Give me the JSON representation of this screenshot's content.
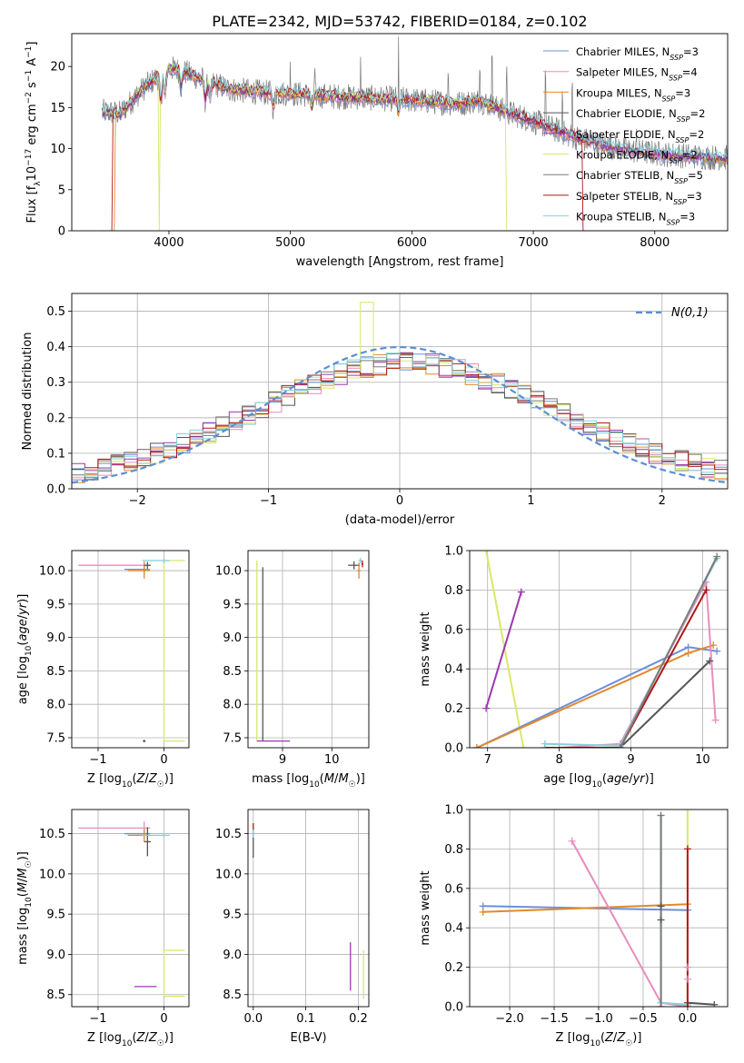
{
  "figure_title": "PLATE=2342, MJD=53742, FIBERID=0184, z=0.102",
  "colors": {
    "chabrier_miles": "#6c8fd9",
    "salpeter_miles": "#e88cbc",
    "kroupa_miles": "#e08a2a",
    "chabrier_elodie": "#555555",
    "salpeter_elodie": "#9b38b0",
    "kroupa_elodie": "#d8e86a",
    "chabrier_stelib": "#7a7a7a",
    "salpeter_stelib": "#b01818",
    "kroupa_stelib": "#84d0d8",
    "normal_curve": "#5b8fd6",
    "grid": "#b0b0b0"
  },
  "chart_data": [
    {
      "id": "spectrum",
      "type": "line",
      "title": "",
      "xlabel": "wavelength [Angstrom, rest frame]",
      "ylabel": "Flux [f_λ 10^-17 erg cm^-2 s^-1 A^-1]",
      "xlim": [
        3200,
        8600
      ],
      "ylim": [
        0,
        24
      ],
      "xticks": [
        4000,
        5000,
        6000,
        7000,
        8000
      ],
      "yticks": [
        0,
        5,
        10,
        15,
        20
      ],
      "grid": false,
      "legend_position": "top-right",
      "legend": [
        {
          "name": "Chabrier MILES, N_SSP=3",
          "color_key": "chabrier_miles"
        },
        {
          "name": "Salpeter MILES, N_SSP=4",
          "color_key": "salpeter_miles"
        },
        {
          "name": "Kroupa MILES, N_SSP=3",
          "color_key": "kroupa_miles"
        },
        {
          "name": "Chabrier ELODIE, N_SSP=2",
          "color_key": "chabrier_elodie"
        },
        {
          "name": "Salpeter ELODIE, N_SSP=2",
          "color_key": "salpeter_elodie"
        },
        {
          "name": "Kroupa ELODIE, N_SSP=2",
          "color_key": "kroupa_elodie"
        },
        {
          "name": "Chabrier STELIB, N_SSP=5",
          "color_key": "chabrier_stelib"
        },
        {
          "name": "Salpeter STELIB, N_SSP=3",
          "color_key": "salpeter_stelib"
        },
        {
          "name": "Kroupa STELIB, N_SSP=3",
          "color_key": "kroupa_stelib"
        }
      ],
      "continuum": {
        "x": [
          3450,
          3600,
          3800,
          3950,
          4000,
          4100,
          4300,
          4500,
          4800,
          5000,
          5300,
          5600,
          5900,
          6200,
          6400,
          6600,
          6750,
          6900,
          7100,
          7300,
          7500,
          7700,
          7900,
          8100,
          8300,
          8500
        ],
        "y": [
          14.5,
          14.3,
          17.5,
          19.2,
          19.8,
          19.5,
          18.3,
          17.2,
          16.8,
          16.7,
          16.4,
          16.2,
          16.0,
          15.7,
          15.4,
          14.9,
          14.6,
          13.9,
          12.8,
          11.6,
          10.7,
          10.0,
          9.6,
          9.3,
          9.1,
          8.9
        ]
      },
      "absorption_dips": [
        {
          "x": 3933,
          "depth": 3.5
        },
        {
          "x": 3968,
          "depth": 3.0
        },
        {
          "x": 4101,
          "depth": 2.0
        },
        {
          "x": 4300,
          "depth": 2.5
        },
        {
          "x": 4340,
          "depth": 2.0
        },
        {
          "x": 4861,
          "depth": 1.8
        },
        {
          "x": 5175,
          "depth": 1.5
        },
        {
          "x": 5890,
          "depth": 1.5
        }
      ],
      "emission_spikes": [
        {
          "x": 5000,
          "height": 3.0
        },
        {
          "x": 5200,
          "height": 2.0
        },
        {
          "x": 5577,
          "height": 4.0
        },
        {
          "x": 5890,
          "height": 8.5
        },
        {
          "x": 6300,
          "height": 4.0
        },
        {
          "x": 6560,
          "height": 5.0
        },
        {
          "x": 6660,
          "height": 7.5
        },
        {
          "x": 6780,
          "height": 5.0
        },
        {
          "x": 7100,
          "height": 6.5
        },
        {
          "x": 7240,
          "height": 5.0
        },
        {
          "x": 7320,
          "height": 6.0
        },
        {
          "x": 7850,
          "height": 2.5
        }
      ],
      "bad_pixel_drops": [
        {
          "x": 3530,
          "color_key": "salpeter_stelib"
        },
        {
          "x": 3550,
          "color_key": "kroupa_miles"
        },
        {
          "x": 3920,
          "color_key": "kroupa_elodie"
        },
        {
          "x": 6780,
          "color_key": "kroupa_elodie"
        },
        {
          "x": 7410,
          "color_key": "salpeter_stelib"
        }
      ]
    },
    {
      "id": "residuals",
      "type": "step",
      "title": "",
      "xlabel": "(data-model)/error",
      "ylabel": "Normed distribution",
      "xlim": [
        -2.5,
        2.5
      ],
      "ylim": [
        0,
        0.55
      ],
      "xticks": [
        -2,
        -1,
        0,
        1,
        2
      ],
      "yticks": [
        0.0,
        0.1,
        0.2,
        0.3,
        0.4,
        0.5
      ],
      "grid": true,
      "legend_position": "top-right",
      "legend": [
        {
          "name": "N(0,1)",
          "color_key": "normal_curve",
          "style": "dashed"
        }
      ],
      "bins": {
        "start": -2.5,
        "width": 0.1,
        "count": 50
      },
      "base": [
        0.045,
        0.052,
        0.06,
        0.069,
        0.078,
        0.089,
        0.101,
        0.114,
        0.128,
        0.143,
        0.159,
        0.175,
        0.192,
        0.21,
        0.228,
        0.245,
        0.262,
        0.279,
        0.295,
        0.31,
        0.323,
        0.334,
        0.343,
        0.35,
        0.354,
        0.356,
        0.354,
        0.35,
        0.343,
        0.334,
        0.323,
        0.31,
        0.295,
        0.279,
        0.262,
        0.245,
        0.228,
        0.21,
        0.192,
        0.175,
        0.159,
        0.143,
        0.128,
        0.114,
        0.101,
        0.089,
        0.078,
        0.069,
        0.06,
        0.052
      ],
      "peak_note": {
        "x": -0.25,
        "y": 0.525,
        "color_key": "kroupa_elodie"
      }
    },
    {
      "id": "age-vs-Z",
      "type": "scatter",
      "title": "",
      "xlabel": "Z [log10(Z/Z_sun)]",
      "ylabel": "age [log10(age/yr)]",
      "xlim": [
        -1.4,
        0.38
      ],
      "ylim": [
        7.35,
        10.3
      ],
      "xticks": [
        -1,
        0
      ],
      "yticks": [
        7.5,
        8.0,
        8.5,
        9.0,
        9.5,
        10.0
      ],
      "grid": true,
      "points": [
        {
          "x": -0.3,
          "y": 10.08,
          "xerr": 1.0,
          "yerr": 0.06,
          "color_key": "salpeter_miles"
        },
        {
          "x": -0.3,
          "y": 10.02,
          "xerr": 0.3,
          "yerr": 0.08,
          "color_key": "chabrier_miles"
        },
        {
          "x": -0.3,
          "y": 10.0,
          "xerr": 0.25,
          "yerr": 0.12,
          "color_key": "kroupa_miles"
        },
        {
          "x": -0.25,
          "y": 10.08,
          "xerr": 0.05,
          "yerr": 0.05,
          "color_key": "chabrier_elodie"
        },
        {
          "x": 0.0,
          "y": 10.15,
          "xerr": 0.33,
          "yerr": 0.04,
          "color_key": "kroupa_stelib"
        },
        {
          "x": -0.3,
          "y": 7.45,
          "xerr": 0.02,
          "yerr": 0.02,
          "color_key": "chabrier_elodie"
        }
      ],
      "bars": [
        {
          "x": 0.0,
          "y0": 7.45,
          "y1": 10.15,
          "color_key": "kroupa_elodie",
          "horizontal_to": 0.32
        }
      ]
    },
    {
      "id": "age-vs-mass",
      "type": "scatter",
      "title": "",
      "xlabel": "mass [log10(M/M_sun)]",
      "ylabel": "",
      "xlim": [
        8.3,
        10.75
      ],
      "ylim": [
        7.35,
        10.3
      ],
      "xticks": [
        9,
        10
      ],
      "yticks": [
        7.5,
        8.0,
        8.5,
        9.0,
        9.5,
        10.0
      ],
      "grid": true,
      "points": [
        {
          "x": 10.45,
          "y": 10.08,
          "xerr": 0.12,
          "yerr": 0.06,
          "color_key": "chabrier_elodie"
        },
        {
          "x": 10.55,
          "y": 10.0,
          "xerr": 0.04,
          "yerr": 0.12,
          "color_key": "kroupa_miles"
        },
        {
          "x": 10.58,
          "y": 10.15,
          "xerr": 0.04,
          "yerr": 0.04,
          "color_key": "kroupa_stelib"
        },
        {
          "x": 10.62,
          "y": 10.1,
          "xerr": 0.02,
          "yerr": 0.05,
          "color_key": "salpeter_stelib"
        }
      ],
      "bars": [
        {
          "x": 8.48,
          "y0": 7.45,
          "y1": 10.15,
          "color_key": "kroupa_elodie"
        },
        {
          "x": 8.6,
          "y0": 7.45,
          "y1": 10.05,
          "color_key": "chabrier_elodie"
        }
      ],
      "hlines": [
        {
          "y": 7.45,
          "x0": 8.48,
          "x1": 9.15,
          "color_key": "salpeter_elodie"
        }
      ]
    },
    {
      "id": "massweight-vs-age",
      "type": "line",
      "title": "",
      "xlabel": "age [log10(age/yr)]",
      "ylabel": "mass weight",
      "xlim": [
        6.75,
        10.35
      ],
      "ylim": [
        0,
        1.0
      ],
      "xticks": [
        7,
        8,
        9,
        10
      ],
      "yticks": [
        0.0,
        0.2,
        0.4,
        0.6,
        0.8,
        1.0
      ],
      "grid": true,
      "series": [
        {
          "color_key": "kroupa_elodie",
          "x": [
            6.98,
            7.5
          ],
          "y": [
            1.0,
            0.0
          ]
        },
        {
          "color_key": "salpeter_elodie",
          "x": [
            6.98,
            7.47
          ],
          "y": [
            0.2,
            0.79
          ]
        },
        {
          "color_key": "chabrier_miles",
          "x": [
            6.85,
            9.8,
            10.2
          ],
          "y": [
            0.0,
            0.51,
            0.49
          ]
        },
        {
          "color_key": "kroupa_miles",
          "x": [
            6.85,
            9.8,
            10.15
          ],
          "y": [
            0.0,
            0.48,
            0.52
          ]
        },
        {
          "color_key": "salpeter_miles",
          "x": [
            8.0,
            8.85,
            10.05,
            10.18
          ],
          "y": [
            0.0,
            0.02,
            0.84,
            0.14
          ]
        },
        {
          "color_key": "salpeter_stelib",
          "x": [
            7.8,
            8.85,
            10.05
          ],
          "y": [
            0.0,
            0.0,
            0.8
          ]
        },
        {
          "color_key": "chabrier_elodie",
          "x": [
            8.85,
            10.1
          ],
          "y": [
            0.0,
            0.44
          ]
        },
        {
          "color_key": "kroupa_stelib",
          "x": [
            7.8,
            8.85,
            10.2
          ],
          "y": [
            0.02,
            0.01,
            0.96
          ]
        },
        {
          "color_key": "chabrier_stelib",
          "x": [
            8.85,
            10.2
          ],
          "y": [
            0.0,
            0.97
          ]
        }
      ]
    },
    {
      "id": "mass-vs-Z",
      "type": "scatter",
      "title": "",
      "xlabel": "Z [log10(Z/Z_sun)]",
      "ylabel": "mass [log10(M/M_sun)]",
      "xlim": [
        -1.4,
        0.38
      ],
      "ylim": [
        8.35,
        10.8
      ],
      "xticks": [
        -1,
        0
      ],
      "yticks": [
        8.5,
        9.0,
        9.5,
        10.0,
        10.5
      ],
      "grid": true,
      "points": [
        {
          "x": -0.3,
          "y": 10.57,
          "xerr": 1.0,
          "yerr": 0.08,
          "color_key": "salpeter_miles"
        },
        {
          "x": -0.3,
          "y": 10.5,
          "xerr": 0.3,
          "yerr": 0.05,
          "color_key": "chabrier_miles"
        },
        {
          "x": -0.3,
          "y": 10.48,
          "xerr": 0.25,
          "yerr": 0.08,
          "color_key": "kroupa_miles"
        },
        {
          "x": -0.25,
          "y": 10.4,
          "xerr": 0.05,
          "yerr": 0.18,
          "color_key": "chabrier_elodie"
        },
        {
          "x": 0.0,
          "y": 10.48,
          "xerr": 0.33,
          "yerr": 0.03,
          "color_key": "kroupa_stelib"
        },
        {
          "x": -0.2,
          "y": 8.6,
          "xerr": 0.25,
          "yerr": 0.0,
          "color_key": "salpeter_elodie"
        }
      ],
      "bars": [
        {
          "x": 0.0,
          "y0": 8.48,
          "y1": 9.05,
          "color_key": "kroupa_elodie",
          "horizontal_to": 0.32
        }
      ]
    },
    {
      "id": "mass-vs-EBV",
      "type": "scatter",
      "title": "",
      "xlabel": "E(B-V)",
      "ylabel": "",
      "xlim": [
        -0.01,
        0.22
      ],
      "ylim": [
        8.35,
        10.8
      ],
      "xticks": [
        0.0,
        0.1,
        0.2
      ],
      "yticks": [
        8.5,
        9.0,
        9.5,
        10.0,
        10.5
      ],
      "grid": true,
      "points": [
        {
          "x": 0.0,
          "y": 10.55,
          "xerr": 0.0,
          "yerr": 0.08,
          "color_key": "salpeter_stelib"
        },
        {
          "x": 0.0,
          "y": 10.35,
          "xerr": 0.0,
          "yerr": 0.15,
          "color_key": "chabrier_elodie"
        },
        {
          "x": 0.0,
          "y": 10.5,
          "xerr": 0.0,
          "yerr": 0.05,
          "color_key": "kroupa_stelib"
        },
        {
          "x": 0.185,
          "y": 8.85,
          "xerr": 0.0,
          "yerr": 0.3,
          "color_key": "salpeter_elodie"
        },
        {
          "x": 0.21,
          "y": 8.75,
          "xerr": 0.0,
          "yerr": 0.3,
          "color_key": "kroupa_elodie"
        }
      ]
    },
    {
      "id": "massweight-vs-Z",
      "type": "line",
      "title": "",
      "xlabel": "Z [log10(Z/Z_sun)]",
      "ylabel": "mass weight",
      "xlim": [
        -2.45,
        0.45
      ],
      "ylim": [
        0,
        1.0
      ],
      "xticks": [
        -2.0,
        -1.5,
        -1.0,
        -0.5,
        0.0
      ],
      "yticks": [
        0.0,
        0.2,
        0.4,
        0.6,
        0.8,
        1.0
      ],
      "grid": true,
      "series": [
        {
          "color_key": "chabrier_miles",
          "x": [
            -2.3,
            0.0
          ],
          "y": [
            0.51,
            0.49
          ]
        },
        {
          "color_key": "kroupa_miles",
          "x": [
            -2.3,
            0.0
          ],
          "y": [
            0.48,
            0.52
          ]
        },
        {
          "color_key": "salpeter_miles",
          "x": [
            -1.3,
            -0.3,
            0.0
          ],
          "y": [
            0.84,
            0.02,
            0.0
          ]
        },
        {
          "color_key": "kroupa_stelib",
          "x": [
            -0.3,
            -0.3,
            0.0
          ],
          "y": [
            0.97,
            0.02,
            0.01
          ]
        },
        {
          "color_key": "kroupa_elodie",
          "x": [
            0.0,
            0.0
          ],
          "y": [
            1.0,
            0.0
          ]
        },
        {
          "color_key": "chabrier_elodie",
          "x": [
            0.0,
            0.3
          ],
          "y": [
            0.02,
            0.01
          ]
        },
        {
          "color_key": "salpeter_stelib",
          "x": [
            0.0,
            0.0
          ],
          "y": [
            0.8,
            0.0
          ]
        },
        {
          "color_key": "chabrier_stelib",
          "x": [
            -0.3,
            -0.3
          ],
          "y": [
            0.97,
            0.0
          ]
        }
      ],
      "markers": [
        {
          "x": -0.3,
          "y": 0.51,
          "color_key": "chabrier_elodie"
        },
        {
          "x": -0.3,
          "y": 0.44,
          "color_key": "chabrier_elodie"
        },
        {
          "x": 0.0,
          "y": 0.2,
          "color_key": "salpeter_miles"
        },
        {
          "x": 0.0,
          "y": 0.14,
          "color_key": "salpeter_miles"
        }
      ]
    }
  ]
}
